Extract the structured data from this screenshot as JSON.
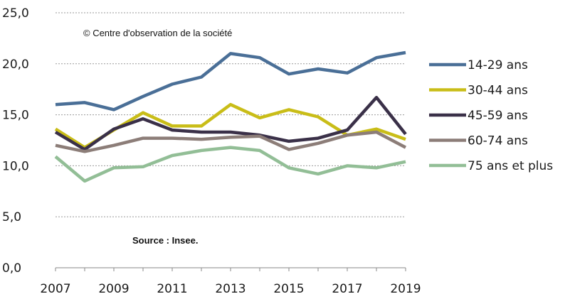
{
  "chart_data": {
    "type": "line",
    "title": "",
    "xlabel": "",
    "ylabel": "",
    "x": [
      2007,
      2008,
      2009,
      2010,
      2011,
      2012,
      2013,
      2014,
      2015,
      2016,
      2017,
      2018,
      2019
    ],
    "x_tick_labels": [
      "2007",
      "2009",
      "2011",
      "2013",
      "2015",
      "2017",
      "2019"
    ],
    "y_tick_labels": [
      "0,0",
      "5,0",
      "10,0",
      "15,0",
      "20,0",
      "25,0"
    ],
    "ylim": [
      0,
      25
    ],
    "y_ticks": [
      0,
      5,
      10,
      15,
      20,
      25
    ],
    "grid": "horizontal",
    "legend_position": "right",
    "annotations": {
      "copyright": "© Centre d'observation de la société",
      "source": "Source : Insee."
    },
    "series": [
      {
        "name": "14-29 ans",
        "color": "#4a6f97",
        "values": [
          16.0,
          16.2,
          15.5,
          16.8,
          18.0,
          18.7,
          21.0,
          20.6,
          19.0,
          19.5,
          19.1,
          20.6,
          21.1
        ]
      },
      {
        "name": "30-44 ans",
        "color": "#c9bd18",
        "values": [
          13.6,
          11.8,
          13.5,
          15.2,
          13.9,
          13.9,
          16.0,
          14.7,
          15.5,
          14.8,
          13.0,
          13.6,
          12.6
        ]
      },
      {
        "name": "45-59 ans",
        "color": "#3a3048",
        "values": [
          13.3,
          11.6,
          13.6,
          14.6,
          13.5,
          13.3,
          13.3,
          13.0,
          12.4,
          12.7,
          13.5,
          16.7,
          13.1
        ]
      },
      {
        "name": "60-74 ans",
        "color": "#8c7d78",
        "values": [
          12.0,
          11.4,
          12.0,
          12.7,
          12.7,
          12.6,
          12.8,
          12.9,
          11.6,
          12.2,
          13.0,
          13.3,
          11.8
        ]
      },
      {
        "name": "75 ans et plus",
        "color": "#92be96",
        "values": [
          10.9,
          8.5,
          9.8,
          9.9,
          11.0,
          11.5,
          11.8,
          11.5,
          9.8,
          9.2,
          10.0,
          9.8,
          10.4
        ]
      }
    ]
  }
}
